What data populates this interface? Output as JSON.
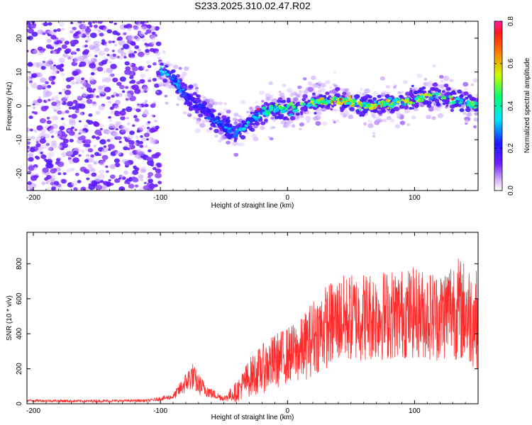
{
  "title": "S233.2025.310.02.47.R02",
  "colors": {
    "snr_line": "#ff2a2a",
    "spectrogram_points": "#6a1cff",
    "background": "#ffffff"
  },
  "chart_data": [
    {
      "type": "heatmap",
      "name": "spectrogram",
      "xlabel": "Height of straight line (km)",
      "ylabel": "Frequency (Hz)",
      "xlim": [
        -205,
        150
      ],
      "ylim": [
        -25,
        25
      ],
      "xticks": [
        -200,
        -100,
        0,
        100
      ],
      "yticks": [
        -20,
        -10,
        0,
        10,
        20
      ],
      "xtick_labels": [
        "-200",
        "-100",
        "0",
        "100"
      ],
      "ytick_labels": [
        "-20",
        "-10",
        "0",
        "10",
        "20"
      ],
      "colorbar": {
        "label": "Normalized spectral amplitude",
        "range": [
          0.0,
          0.8
        ],
        "ticks": [
          0.0,
          0.2,
          0.4,
          0.6,
          0.8
        ],
        "tick_labels": [
          "0.0",
          "0.2",
          "0.4",
          "0.6",
          "0.8"
        ],
        "colormap": "purple-blue-cyan-green-yellow-red-magenta"
      },
      "ridge": {
        "height_km": [
          -100,
          -90,
          -80,
          -70,
          -60,
          -50,
          -40,
          -30,
          -20,
          -10,
          0,
          10,
          20,
          30,
          40,
          50,
          60,
          70,
          80,
          90,
          100,
          110,
          120,
          130,
          140,
          150
        ],
        "frequency_hz": [
          11,
          8,
          3,
          0,
          -3,
          -6,
          -8,
          -5,
          -2,
          -1,
          -1,
          0,
          1,
          1,
          2,
          1,
          0,
          0,
          1,
          1,
          2,
          3,
          3,
          2,
          1,
          0
        ],
        "amplitude": [
          0.35,
          0.3,
          0.28,
          0.25,
          0.25,
          0.3,
          0.33,
          0.35,
          0.4,
          0.45,
          0.45,
          0.45,
          0.5,
          0.55,
          0.55,
          0.55,
          0.5,
          0.55,
          0.55,
          0.5,
          0.55,
          0.5,
          0.5,
          0.45,
          0.45,
          0.45
        ]
      },
      "noise_region_km": [
        -205,
        -100
      ]
    },
    {
      "type": "line",
      "name": "snr",
      "xlabel": "Height of straight line (km)",
      "ylabel": "SNR (10 * v/v)",
      "xlim": [
        -205,
        150
      ],
      "ylim": [
        0,
        980
      ],
      "xticks": [
        -200,
        -100,
        0,
        100
      ],
      "yticks": [
        0,
        200,
        400,
        600,
        800
      ],
      "xtick_labels": [
        "-200",
        "-100",
        "0",
        "100"
      ],
      "ytick_labels": [
        "0",
        "200",
        "400",
        "600",
        "800"
      ],
      "envelope": {
        "height_km": [
          -205,
          -160,
          -110,
          -90,
          -80,
          -75,
          -70,
          -60,
          -50,
          -40,
          -30,
          -20,
          -10,
          0,
          10,
          20,
          30,
          40,
          60,
          80,
          100,
          120,
          130,
          140,
          150
        ],
        "mean": [
          18,
          15,
          18,
          40,
          120,
          160,
          110,
          60,
          30,
          70,
          150,
          200,
          240,
          280,
          300,
          380,
          440,
          480,
          500,
          510,
          520,
          500,
          560,
          520,
          480
        ],
        "spread": [
          8,
          8,
          8,
          15,
          60,
          80,
          60,
          30,
          15,
          60,
          110,
          140,
          160,
          160,
          180,
          220,
          240,
          250,
          260,
          260,
          260,
          260,
          300,
          300,
          280
        ]
      }
    }
  ]
}
